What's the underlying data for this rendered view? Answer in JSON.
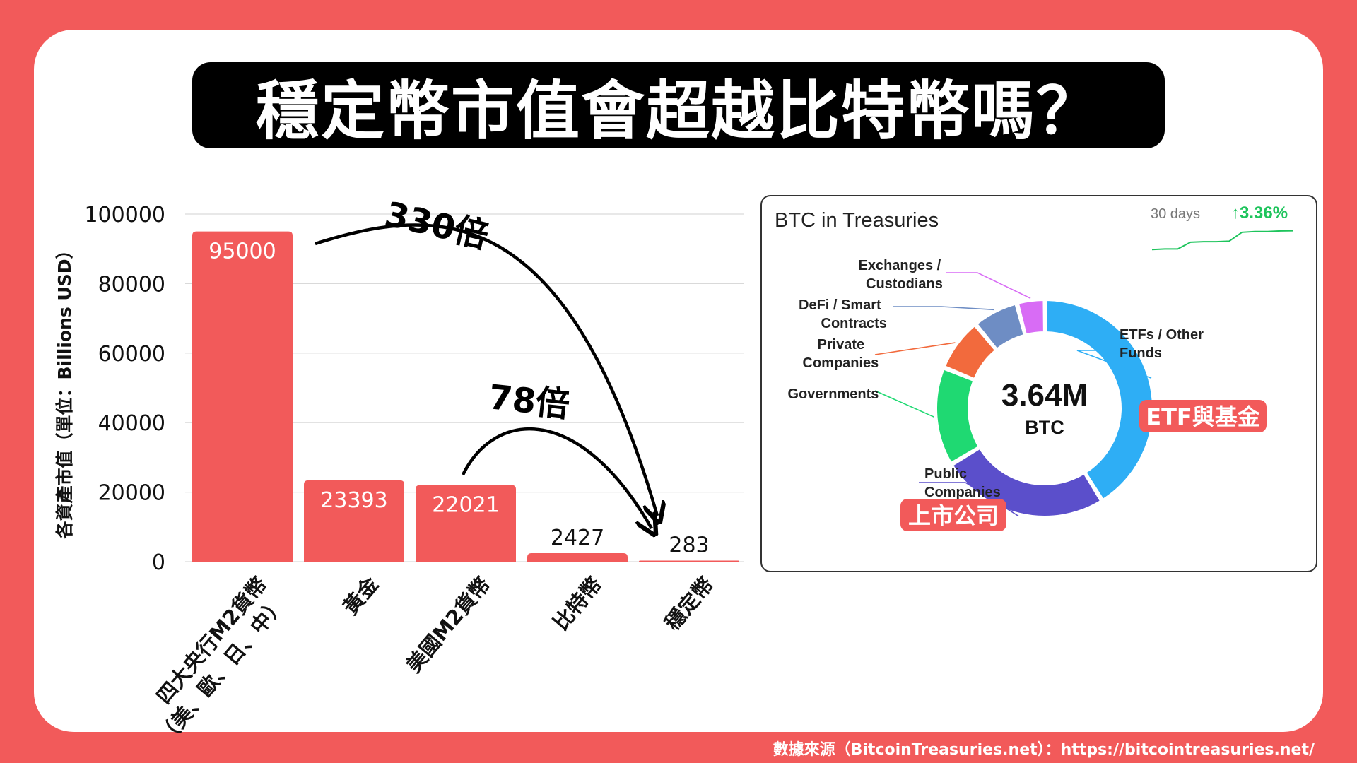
{
  "title": "穩定幣市值會超越比特幣嗎？",
  "source": "數據來源（BitcoinTreasuries.net）：https://bitcointreasuries.net/",
  "colors": {
    "background": "#F25A5A",
    "bar": "#F25A5A",
    "card": "#FFFFFF"
  },
  "annotations": {
    "big_multiple": "330倍",
    "small_multiple": "78倍"
  },
  "chart_data": [
    {
      "type": "bar",
      "ylabel": "各資產市值（單位：Billions USD）",
      "ylim": [
        0,
        100000
      ],
      "yticks": [
        "0",
        "20000",
        "40000",
        "60000",
        "80000",
        "100000"
      ],
      "grid": true,
      "categories": [
        "四大央行M2貨幣\n（美、歐、日、中）",
        "黃金",
        "美國M2貨幣",
        "比特幣",
        "穩定幣"
      ],
      "values": [
        95000,
        23393,
        22021,
        2427,
        283
      ],
      "value_labels": [
        "95000",
        "23393",
        "22021",
        "2427",
        "283"
      ]
    },
    {
      "type": "pie",
      "title": "BTC in Treasuries",
      "center_value": "3.64M",
      "center_unit": "BTC",
      "period_label": "30 days",
      "change": "↑3.36%",
      "trend": [
        0.18,
        0.2,
        0.2,
        0.45,
        0.47,
        0.47,
        0.49,
        0.82,
        0.85,
        0.85,
        0.87,
        0.88
      ],
      "slices": [
        {
          "label": "ETFs / Other Funds",
          "value": 39.0,
          "color": "#2EAEF5"
        },
        {
          "label": "Public Companies",
          "value": 24.0,
          "color": "#5B4FCB"
        },
        {
          "label": "Governments",
          "value": 14.0,
          "color": "#1FD972"
        },
        {
          "label": "Private Companies",
          "value": 7.5,
          "color": "#F26A3D"
        },
        {
          "label": "DeFi / Smart Contracts",
          "value": 6.5,
          "color": "#6E8DC4"
        },
        {
          "label": "Exchanges / Custodians",
          "value": 4.0,
          "color": "#D86CF5"
        }
      ],
      "callouts": {
        "etf": "ETF與基金",
        "public": "上市公司"
      }
    }
  ]
}
